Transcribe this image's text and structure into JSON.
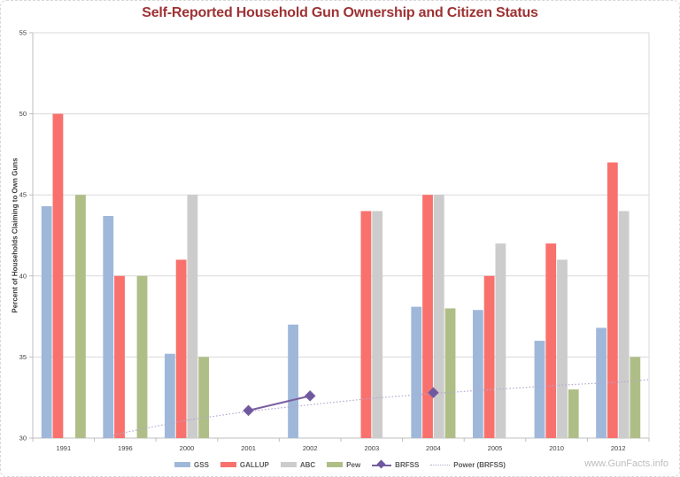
{
  "page": {
    "title": "Self-Reported Household Gun Ownership and Citizen Status",
    "title_color": "#9e3234",
    "watermark": "www.GunFacts.info"
  },
  "chart_data": {
    "type": "bar",
    "title": "Self-Reported Household Gun Ownership and Citizen Status",
    "xlabel": "",
    "ylabel": "Percent of Households Claiming to Own Guns",
    "ylim": [
      30,
      55
    ],
    "yticks": [
      30,
      35,
      40,
      45,
      50,
      55
    ],
    "grid": true,
    "legend_position": "bottom",
    "categories": [
      "1991",
      "1996",
      "2000",
      "2001",
      "2002",
      "2003",
      "2004",
      "2005",
      "2010",
      "2012"
    ],
    "series": [
      {
        "name": "GSS",
        "type": "bar",
        "color": "#9fb8da",
        "values": [
          44.3,
          43.7,
          35.2,
          null,
          37,
          null,
          38.1,
          37.9,
          36,
          36.8
        ]
      },
      {
        "name": "GALLUP",
        "type": "bar",
        "color": "#f8716d",
        "values": [
          50,
          40,
          41,
          null,
          null,
          44,
          45,
          40,
          42,
          47
        ]
      },
      {
        "name": "ABC",
        "type": "bar",
        "color": "#cccccc",
        "values": [
          null,
          null,
          45,
          null,
          null,
          44,
          45,
          42,
          41,
          44
        ]
      },
      {
        "name": "Pew",
        "type": "bar",
        "color": "#afbe86",
        "values": [
          45,
          40,
          35,
          null,
          null,
          null,
          38,
          null,
          33,
          35
        ]
      },
      {
        "name": "BRFSS",
        "type": "line",
        "color": "#7a5fa0",
        "marker": "diamond",
        "marker_color": "#6e59a0",
        "values": [
          null,
          null,
          null,
          31.7,
          32.6,
          null,
          32.8,
          null,
          null,
          null
        ]
      }
    ],
    "trendline": {
      "name": "Power (BRFSS)",
      "style": "dotted",
      "color": "#b3a6cf",
      "points": [
        [
          1.65,
          30
        ],
        [
          2,
          30.35
        ],
        [
          3,
          31.1
        ],
        [
          4,
          31.65
        ],
        [
          5,
          32.05
        ],
        [
          6,
          32.45
        ],
        [
          7,
          32.75
        ],
        [
          8,
          33.0
        ],
        [
          9,
          33.25
        ],
        [
          10,
          33.45
        ],
        [
          10.5,
          33.6
        ]
      ]
    },
    "axis_colors": {
      "gridline": "#d9d9d9",
      "axis": "#bfbfbf",
      "tick_label": "#404040"
    }
  }
}
